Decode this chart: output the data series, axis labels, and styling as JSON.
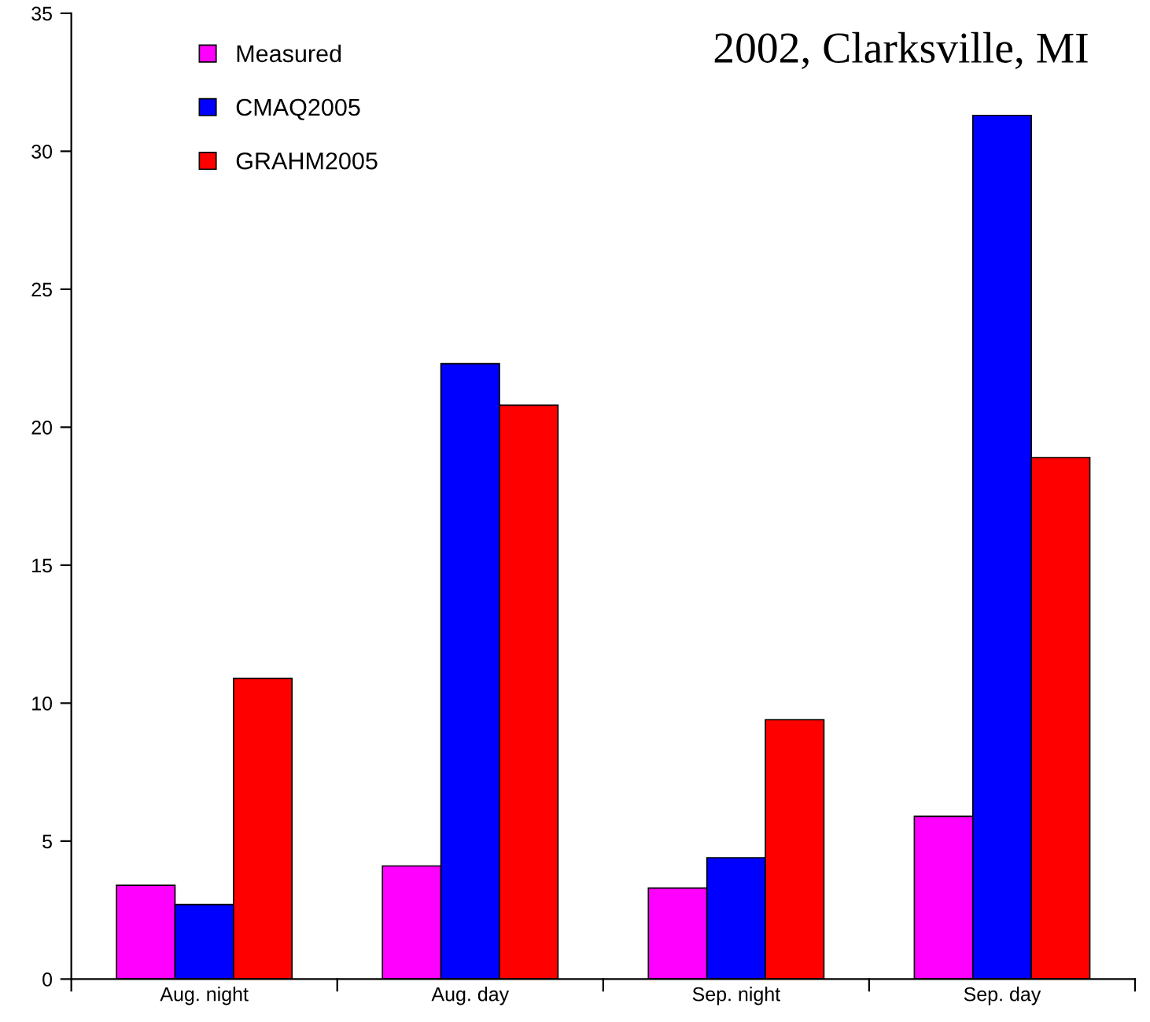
{
  "chart_data": {
    "type": "bar",
    "title": "2002, Clarksville, MI",
    "categories": [
      "Aug. night",
      "Aug. day",
      "Sep. night",
      "Sep. day"
    ],
    "series": [
      {
        "name": "Measured",
        "color": "#ff00ff",
        "values": [
          3.4,
          4.1,
          3.3,
          5.9
        ]
      },
      {
        "name": "CMAQ2005",
        "color": "#0000ff",
        "values": [
          2.7,
          22.3,
          4.4,
          31.3
        ]
      },
      {
        "name": "GRAHM2005",
        "color": "#ff0000",
        "values": [
          10.9,
          20.8,
          9.4,
          18.9
        ]
      }
    ],
    "ylim": [
      0,
      35
    ],
    "yticks": [
      0,
      5,
      10,
      15,
      20,
      25,
      30,
      35
    ],
    "grid": false,
    "legend": "top left"
  }
}
